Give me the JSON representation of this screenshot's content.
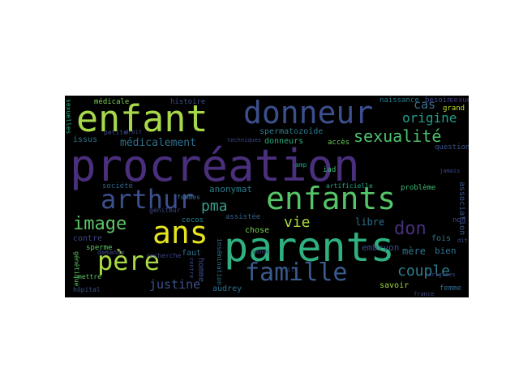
{
  "words": [
    {
      "text": "procréation",
      "color": "#4a2f7c"
    },
    {
      "text": "enfant",
      "color": "#a6d84a"
    },
    {
      "text": "donneur",
      "color": "#3b4f8d"
    },
    {
      "text": "parents",
      "color": "#2fb07f"
    },
    {
      "text": "enfants",
      "color": "#56c468"
    },
    {
      "text": "arthur",
      "color": "#3d4f8c"
    },
    {
      "text": "ans",
      "color": "#e6e41e"
    },
    {
      "text": "père",
      "color": "#a7da45"
    },
    {
      "text": "famille",
      "color": "#3a5a8c"
    },
    {
      "text": "image",
      "color": "#5ec467"
    },
    {
      "text": "sexualité",
      "color": "#4ec16e"
    },
    {
      "text": "couple",
      "color": "#2e7e8e"
    },
    {
      "text": "origine",
      "color": "#1f9e89"
    },
    {
      "text": "don",
      "color": "#482e7a"
    },
    {
      "text": "vie",
      "color": "#a8d93f"
    },
    {
      "text": "pma",
      "color": "#3a9b8a"
    },
    {
      "text": "médicalement",
      "color": "#2d708e"
    },
    {
      "text": "justine",
      "color": "#3c518b"
    },
    {
      "text": "cas",
      "color": "#3b6f8e"
    },
    {
      "text": "spermatozoïde",
      "color": "#2c7c8e"
    },
    {
      "text": "anonymat",
      "color": "#287d8e"
    },
    {
      "text": "donneurs",
      "color": "#27ad81"
    },
    {
      "text": "embryon",
      "color": "#3c4f8a"
    },
    {
      "text": "mère",
      "color": "#2b758e"
    },
    {
      "text": "libre",
      "color": "#2b6e8e"
    },
    {
      "text": "bien",
      "color": "#2c728e"
    },
    {
      "text": "savoir",
      "color": "#9fd83b"
    },
    {
      "text": "association",
      "color": "#3a548c"
    },
    {
      "text": "médicale",
      "color": "#7ad151"
    },
    {
      "text": "histoire",
      "color": "#3d4e8a"
    },
    {
      "text": "naissance",
      "color": "#2a788e"
    },
    {
      "text": "besoin",
      "color": "#3e4989"
    },
    {
      "text": "sexuelle",
      "color": "#46337e"
    },
    {
      "text": "grand",
      "color": "#bddf26"
    },
    {
      "text": "issus",
      "color": "#2c738e"
    },
    {
      "text": "accès",
      "color": "#6dcd59"
    },
    {
      "text": "iad",
      "color": "#3fbc73"
    },
    {
      "text": "amp",
      "color": "#20a386"
    },
    {
      "text": "chose",
      "color": "#74d055"
    },
    {
      "text": "contre",
      "color": "#3f4788"
    },
    {
      "text": "sperme",
      "color": "#5ac864"
    },
    {
      "text": "fois",
      "color": "#2a768e"
    },
    {
      "text": "audrey",
      "color": "#2d718e"
    },
    {
      "text": "homme",
      "color": "#3e4c8a"
    },
    {
      "text": "cecos",
      "color": "#26828e"
    },
    {
      "text": "faut",
      "color": "#2e6f8e"
    },
    {
      "text": "assistée",
      "color": "#34618d"
    },
    {
      "text": "insémination",
      "color": "#2c738e"
    },
    {
      "text": "génétique",
      "color": "#5cc863"
    },
    {
      "text": "hôpital",
      "color": "#3b528b"
    },
    {
      "text": "société",
      "color": "#31668e"
    },
    {
      "text": "femmes",
      "color": "#2e6e8e"
    },
    {
      "text": "artificielle",
      "color": "#21a685"
    },
    {
      "text": "problème",
      "color": "#3bbb75"
    },
    {
      "text": "femme",
      "color": "#2f6c8e"
    },
    {
      "text": "question",
      "color": "#3b528b"
    },
    {
      "text": "sexuelles",
      "color": "#2ab07f"
    },
    {
      "text": "géniteur",
      "color": "#3f4889"
    },
    {
      "text": "mettre",
      "color": "#5ec962"
    },
    {
      "text": "non",
      "color": "#3e4a89"
    },
    {
      "text": "petite",
      "color": "#3e4a89"
    },
    {
      "text": "demande",
      "color": "#3e4a89"
    },
    {
      "text": "monde",
      "color": "#3f4788"
    },
    {
      "text": "techniques",
      "color": "#3e4989"
    },
    {
      "text": "recherche",
      "color": "#404688"
    },
    {
      "text": "origines",
      "color": "#3e4c8a"
    },
    {
      "text": "droit",
      "color": "#3f4788"
    },
    {
      "text": "fils",
      "color": "#3e4989"
    },
    {
      "text": "dit",
      "color": "#3e4989"
    },
    {
      "text": "france",
      "color": "#3e4989"
    },
    {
      "text": "jamais",
      "color": "#3e4989"
    },
    {
      "text": "centre",
      "color": "#3e4989"
    }
  ]
}
